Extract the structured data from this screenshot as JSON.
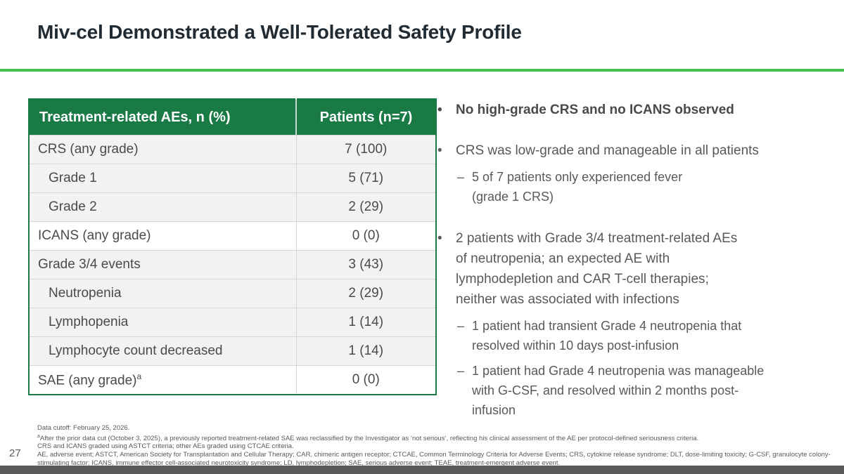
{
  "chars": {
    "bullet": "•",
    "dash": "–"
  },
  "slide": {
    "title": "Miv-cel Demonstrated a Well-Tolerated Safety Profile",
    "page_number": "27"
  },
  "colors": {
    "header_green": "#1A7A46",
    "divider_green": "#46BE50",
    "title_text": "#202B33",
    "body_text": "#595959",
    "table_shaded_row": "#f2f2f2",
    "bottom_bar": "#595959"
  },
  "table": {
    "headers": [
      "Treatment-related AEs, n (%)",
      "Patients (n=7)"
    ],
    "rows": [
      {
        "label": "CRS (any grade)",
        "value": "7 (100)"
      },
      {
        "label": "Grade 1",
        "value": "5 (71)"
      },
      {
        "label": "Grade 2",
        "value": "2 (29)"
      },
      {
        "label": "ICANS (any grade)",
        "value": "0 (0)"
      },
      {
        "label": "Grade 3/4 events",
        "value": "3 (43)"
      },
      {
        "label": "Neutropenia",
        "value": "2 (29)"
      },
      {
        "label": "Lymphopenia",
        "value": "1 (14)"
      },
      {
        "label": "Lymphocyte count decreased",
        "value": "1 (14)"
      },
      {
        "label": "SAE (any grade)",
        "sup": "a",
        "value": "0 (0)"
      }
    ]
  },
  "bullets": [
    {
      "text": "No high-grade CRS and no ICANS observed"
    },
    {
      "text": "CRS was low-grade and manageable in all patients"
    },
    {
      "text": "5 of 7 patients only experienced fever\n(grade 1 CRS)"
    },
    {
      "text": "2 patients with Grade 3/4 treatment-related AEs\nof neutropenia; an expected AE with\nlymphodepletion and CAR T-cell therapies;\nneither was associated with infections"
    },
    {
      "text": "1 patient had transient Grade 4 neutropenia that\nresolved within 10 days post-infusion"
    },
    {
      "text": "1 patient had Grade 4 neutropenia was manageable\nwith G-CSF, and resolved within 2 months post-\ninfusion"
    }
  ],
  "footnotes": {
    "lines": [
      {
        "text": "Data cutoff: February 25, 2026."
      },
      {
        "sup": "a",
        "text": "After the prior data cut (October 3, 2025), a previously reported treatment-related SAE was reclassified by the Investigator as ‘not serious’, reflecting his clinical assessment of the AE per protocol-defined seriousness criteria."
      },
      {
        "text": "CRS and ICANS graded using ASTCT criteria; other AEs graded using CTCAE criteria."
      },
      {
        "text": "AE, adverse event; ASTCT, American Society for Transplantation and Cellular Therapy; CAR, chimeric antigen receptor; CTCAE, Common Terminology Criteria for Adverse Events; CRS, cytokine release syndrome; DLT, dose-limiting toxicity; G-CSF, granulocyte colony-stimulating factor; ICANS, immune effector cell-associated neurotoxicity syndrome; LD, lymphodepletion; SAE, serious adverse event; TEAE, treatment-emergent adverse event."
      }
    ]
  }
}
